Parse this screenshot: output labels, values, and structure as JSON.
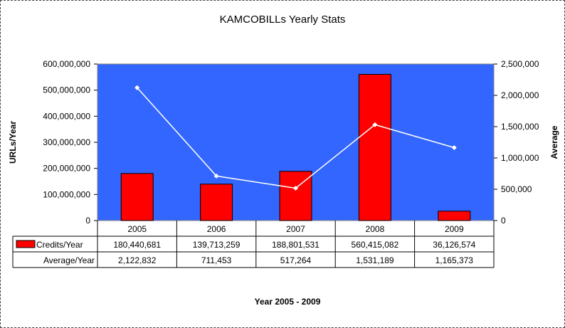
{
  "chart_data": {
    "type": "bar",
    "title": "KAMCOBILLs Yearly Stats",
    "xlabel": "Year 2005 - 2009",
    "ylabel": "URLs/Year",
    "y2label": "Average",
    "categories": [
      "2005",
      "2006",
      "2007",
      "2008",
      "2009"
    ],
    "ylim": [
      0,
      600000000
    ],
    "y2lim": [
      0,
      2500000
    ],
    "y_ticks": [
      "0",
      "100,000,000",
      "200,000,000",
      "300,000,000",
      "400,000,000",
      "500,000,000",
      "600,000,000"
    ],
    "y2_ticks": [
      "0",
      "500,000",
      "1,000,000",
      "1,500,000",
      "2,000,000",
      "2,500,000"
    ],
    "grid": false,
    "plot_background": "#3366ff",
    "series": [
      {
        "name": "Credits/Year",
        "type": "bar",
        "axis": "left",
        "color": "#ff0000",
        "values": [
          180440681,
          139713259,
          188801531,
          560415082,
          36126574
        ],
        "labels": [
          "180,440,681",
          "139,713,259",
          "188,801,531",
          "560,415,082",
          "36,126,574"
        ]
      },
      {
        "name": "Average/Year",
        "type": "line",
        "axis": "right",
        "color": "#ffffff",
        "values": [
          2122832,
          711453,
          517264,
          1531189,
          1165373
        ],
        "labels": [
          "2,122,832",
          "711,453",
          "517,264",
          "1,531,189",
          "1,165,373"
        ]
      }
    ]
  }
}
